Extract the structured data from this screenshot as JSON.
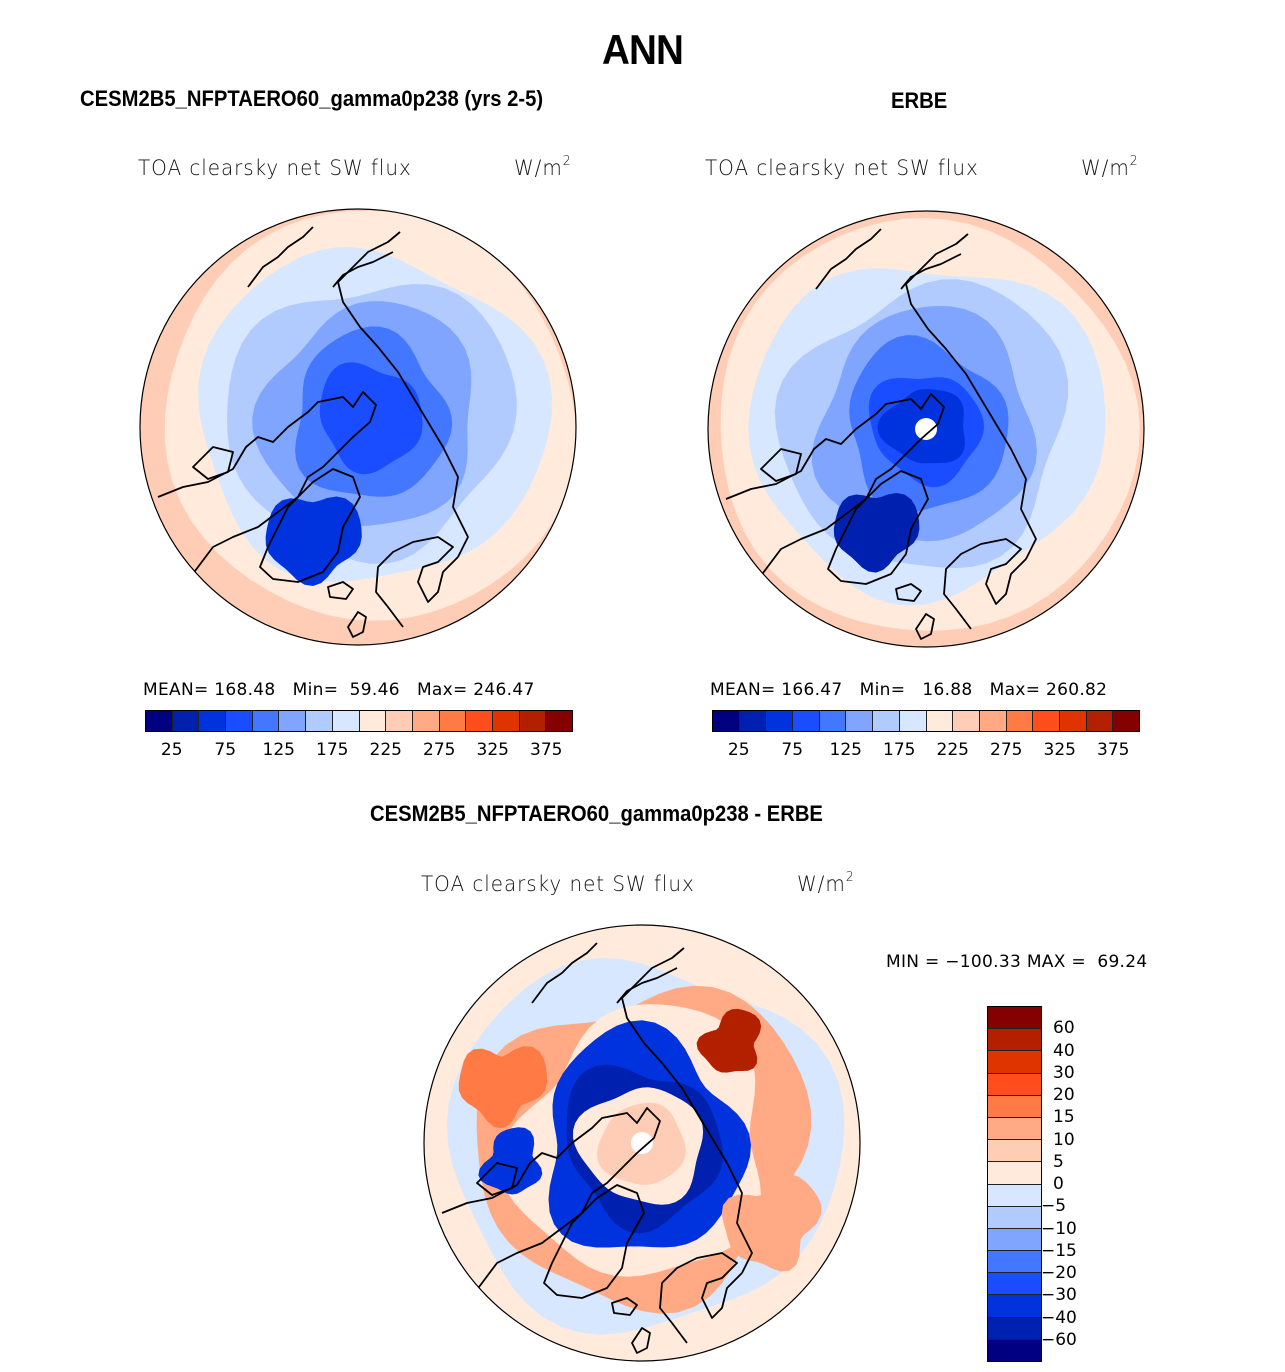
{
  "page": {
    "title": "ANN"
  },
  "panels": [
    {
      "id": "model",
      "title": "CESM2B5_NFPTAERO60_gamma0p238 (yrs 2-5)",
      "variable": "TOA clearsky net SW flux",
      "units_base": "W/m",
      "units_exp": "2",
      "stats": {
        "mean_label": "MEAN=",
        "mean": "168.48",
        "min_label": "Min=",
        "min": "59.46",
        "max_label": "Max=",
        "max": "246.47"
      }
    },
    {
      "id": "obs",
      "title": "ERBE",
      "variable": "TOA clearsky net SW flux",
      "units_base": "W/m",
      "units_exp": "2",
      "stats": {
        "mean_label": "MEAN=",
        "mean": "166.47",
        "min_label": "Min=",
        "min": "16.88",
        "max_label": "Max=",
        "max": "260.82"
      }
    },
    {
      "id": "diff",
      "title": "CESM2B5_NFPTAERO60_gamma0p238 - ERBE",
      "variable": "TOA clearsky net SW flux",
      "units_base": "W/m",
      "units_exp": "2",
      "stats": {
        "min_label": "MIN =",
        "min": "−100.33",
        "max_label": "MAX =",
        "max": "69.24"
      }
    }
  ],
  "chart_data": [
    {
      "type": "heatmap",
      "projection": "north-polar-stereographic",
      "title": "CESM2B5_NFPTAERO60_gamma0p238 (yrs 2-5)",
      "subtitle": "TOA clearsky net SW flux",
      "units": "W/m^2",
      "mean": 168.48,
      "min": 59.46,
      "max": 246.47,
      "colorbar": {
        "orientation": "horizontal",
        "levels": [
          25,
          50,
          75,
          100,
          125,
          150,
          175,
          200,
          225,
          250,
          275,
          300,
          325,
          350,
          375
        ],
        "tick_labels": [
          "25",
          "75",
          "125",
          "175",
          "225",
          "275",
          "325",
          "375"
        ],
        "colors": [
          "#000080",
          "#0020b0",
          "#0033dd",
          "#1a4dff",
          "#4477ff",
          "#7fa5ff",
          "#b2cbff",
          "#d6e7ff",
          "#ffeadb",
          "#ffcdb5",
          "#ffaa85",
          "#ff7a45",
          "#ff4e1b",
          "#e03400",
          "#b32000",
          "#850000"
        ]
      },
      "regions": [
        {
          "name": "outer-ring",
          "level_index": 9
        },
        {
          "name": "midlatitude",
          "level_index": 8
        },
        {
          "name": "subarctic",
          "level_index": 7
        },
        {
          "name": "arctic-margin",
          "level_index": 6
        },
        {
          "name": "arctic-basin",
          "level_index": 5
        },
        {
          "name": "central-arctic",
          "level_index": 3
        },
        {
          "name": "greenland-interior",
          "level_index": 2
        }
      ]
    },
    {
      "type": "heatmap",
      "projection": "north-polar-stereographic",
      "title": "ERBE",
      "subtitle": "TOA clearsky net SW flux",
      "units": "W/m^2",
      "mean": 166.47,
      "min": 16.88,
      "max": 260.82,
      "colorbar": {
        "orientation": "horizontal",
        "levels": [
          25,
          50,
          75,
          100,
          125,
          150,
          175,
          200,
          225,
          250,
          275,
          300,
          325,
          350,
          375
        ],
        "tick_labels": [
          "25",
          "75",
          "125",
          "175",
          "225",
          "275",
          "325",
          "375"
        ],
        "colors": [
          "#000080",
          "#0020b0",
          "#0033dd",
          "#1a4dff",
          "#4477ff",
          "#7fa5ff",
          "#b2cbff",
          "#d6e7ff",
          "#ffeadb",
          "#ffcdb5",
          "#ffaa85",
          "#ff7a45",
          "#ff4e1b",
          "#e03400",
          "#b32000",
          "#850000"
        ]
      },
      "regions": [
        {
          "name": "outer-ring",
          "level_index": 9
        },
        {
          "name": "midlatitude",
          "level_index": 8
        },
        {
          "name": "subarctic",
          "level_index": 7
        },
        {
          "name": "arctic-margin",
          "level_index": 6
        },
        {
          "name": "arctic-basin",
          "level_index": 5
        },
        {
          "name": "central-arctic",
          "level_index": 3
        },
        {
          "name": "inner-ring",
          "level_index": 2
        },
        {
          "name": "greenland-interior",
          "level_index": 1
        },
        {
          "name": "pole-missing",
          "level_index": -1
        }
      ]
    },
    {
      "type": "heatmap",
      "projection": "north-polar-stereographic",
      "title": "CESM2B5_NFPTAERO60_gamma0p238 - ERBE",
      "subtitle": "TOA clearsky net SW flux",
      "units": "W/m^2",
      "min": -100.33,
      "max": 69.24,
      "colorbar": {
        "orientation": "vertical",
        "levels": [
          -60,
          -40,
          -30,
          -20,
          -15,
          -10,
          -5,
          0,
          5,
          10,
          15,
          20,
          30,
          40,
          60
        ],
        "tick_labels": [
          "60",
          "40",
          "30",
          "20",
          "15",
          "10",
          "5",
          "0",
          "−5",
          "−10",
          "−15",
          "−20",
          "−30",
          "−40",
          "−60"
        ],
        "colors": [
          "#000080",
          "#0020b0",
          "#0033dd",
          "#1a4dff",
          "#4477ff",
          "#7fa5ff",
          "#b2cbff",
          "#d6e7ff",
          "#ffeadb",
          "#ffcdb5",
          "#ffaa85",
          "#ff7a45",
          "#ff4e1b",
          "#e03400",
          "#b32000",
          "#850000"
        ]
      },
      "regions": [
        {
          "name": "background",
          "level_index": 8
        },
        {
          "name": "eurasia-warm",
          "level_index": 10
        },
        {
          "name": "north-america-warm",
          "level_index": 11
        },
        {
          "name": "arctic-cold-ring",
          "level_index": 2
        },
        {
          "name": "arctic-deep-cold",
          "level_index": 1
        },
        {
          "name": "polar-warm-arc",
          "level_index": 14
        },
        {
          "name": "polar-cap",
          "level_index": 9
        },
        {
          "name": "pole-missing",
          "level_index": -1
        }
      ]
    }
  ]
}
